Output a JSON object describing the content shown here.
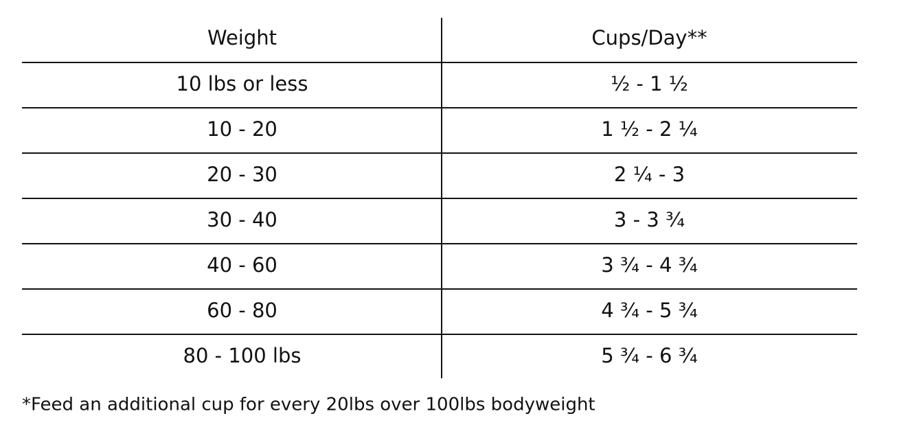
{
  "table": {
    "headers": [
      "Weight",
      "Cups/Day**"
    ],
    "rows": [
      [
        "10 lbs or less",
        "½ - 1 ½"
      ],
      [
        "10 - 20",
        "1 ½ - 2 ¼"
      ],
      [
        "20 - 30",
        "2 ¼ - 3"
      ],
      [
        "30 - 40",
        "3 - 3 ¾"
      ],
      [
        "40 - 60",
        "3 ¾ - 4 ¾"
      ],
      [
        "60 - 80",
        "4 ¾ - 5 ¾"
      ],
      [
        "80 - 100 lbs",
        "5 ¾ - 6 ¾"
      ]
    ]
  },
  "footnote": "*Feed an additional cup for every 20lbs over 100lbs bodyweight"
}
